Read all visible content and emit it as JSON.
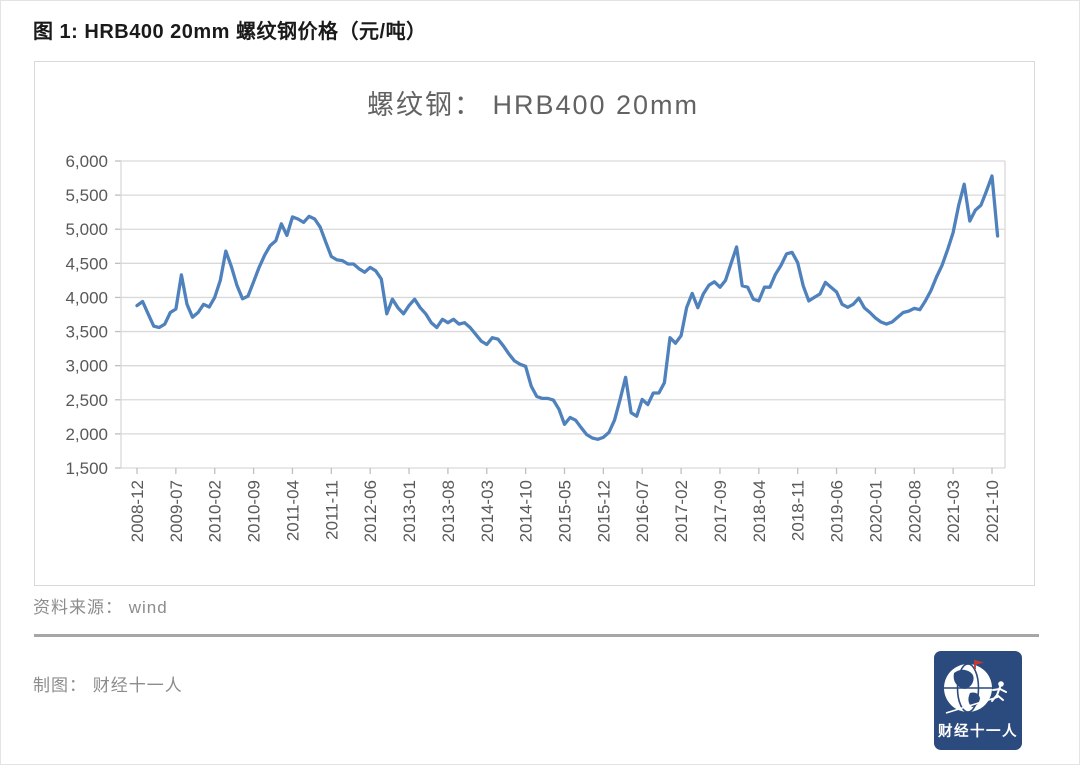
{
  "page": {
    "header": "图 1: HRB400 20mm 螺纹钢价格（元/吨）",
    "source_label": "资料来源： wind",
    "credit_label": "制图： 财经十一人"
  },
  "logo": {
    "text": "财经十一人",
    "bg_color": "#2b4a7d",
    "flag_color": "#c43a2e",
    "icon": "globe-with-runner-icon"
  },
  "chart_data": {
    "type": "line",
    "title": "螺纹钢： HRB400 20mm",
    "series_name": "HRB400 20mm 螺纹钢价格",
    "unit": "元/吨",
    "start_month": "2008-12",
    "frequency": "monthly",
    "ylim": [
      1500,
      6000
    ],
    "y_tick_step": 500,
    "y_tick_labels": [
      "1,500",
      "2,000",
      "2,500",
      "3,000",
      "3,500",
      "4,000",
      "4,500",
      "5,000",
      "5,500",
      "6,000"
    ],
    "x_tick_labels": [
      "2008-12",
      "2009-07",
      "2010-02",
      "2010-09",
      "2011-04",
      "2011-11",
      "2012-06",
      "2013-01",
      "2013-08",
      "2014-03",
      "2014-10",
      "2015-05",
      "2015-12",
      "2016-07",
      "2017-02",
      "2017-09",
      "2018-04",
      "2018-11",
      "2019-06",
      "2020-01",
      "2020-08",
      "2021-03",
      "2021-10"
    ],
    "x_tick_interval_points": 7,
    "grid": true,
    "legend": "none",
    "line_color": "#4f81bd",
    "grid_color": "#d9d9d9",
    "tick_color": "#bfbfbf",
    "text_color": "#595959",
    "title_color": "#636363",
    "values": [
      3880,
      3940,
      3760,
      3580,
      3560,
      3610,
      3780,
      3830,
      4330,
      3900,
      3710,
      3780,
      3900,
      3860,
      4000,
      4250,
      4680,
      4450,
      4180,
      3980,
      4020,
      4230,
      4440,
      4620,
      4760,
      4830,
      5080,
      4910,
      5180,
      5150,
      5100,
      5190,
      5150,
      5030,
      4810,
      4600,
      4550,
      4540,
      4490,
      4490,
      4420,
      4370,
      4440,
      4390,
      4270,
      3760,
      3975,
      3850,
      3760,
      3880,
      3975,
      3850,
      3760,
      3630,
      3560,
      3680,
      3630,
      3680,
      3610,
      3630,
      3560,
      3460,
      3360,
      3310,
      3410,
      3390,
      3290,
      3170,
      3070,
      3020,
      2990,
      2700,
      2550,
      2520,
      2520,
      2495,
      2360,
      2140,
      2240,
      2200,
      2090,
      1990,
      1940,
      1920,
      1950,
      2020,
      2200,
      2500,
      2830,
      2310,
      2260,
      2505,
      2430,
      2600,
      2600,
      2750,
      3410,
      3330,
      3440,
      3850,
      4060,
      3850,
      4050,
      4180,
      4230,
      4150,
      4250,
      4500,
      4740,
      4170,
      4150,
      3975,
      3950,
      4150,
      4150,
      4340,
      4470,
      4640,
      4660,
      4510,
      4170,
      3950,
      4000,
      4050,
      4220,
      4150,
      4080,
      3900,
      3855,
      3900,
      3990,
      3850,
      3780,
      3700,
      3640,
      3610,
      3640,
      3710,
      3780,
      3800,
      3840,
      3820,
      3950,
      4100,
      4300,
      4470,
      4700,
      4950,
      5350,
      5660,
      5120,
      5280,
      5350,
      5560,
      5780,
      4900
    ]
  }
}
